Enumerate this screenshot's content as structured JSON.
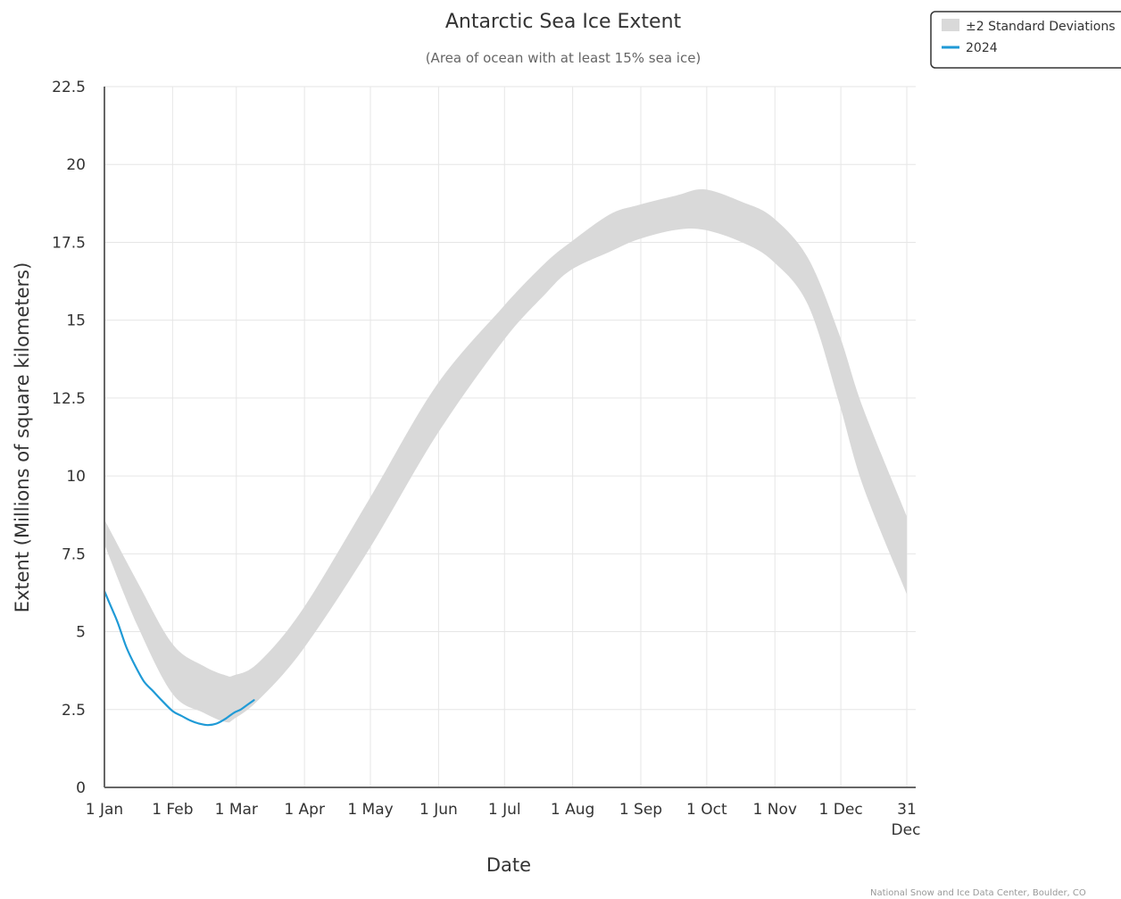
{
  "chart_data": {
    "type": "area",
    "title": "Antarctic Sea Ice Extent",
    "subtitle": "(Area of ocean with at least 15% sea ice)",
    "xlabel": "Date",
    "ylabel": "Extent (Millions of square kilometers)",
    "x_ticks": [
      "1 Jan",
      "1 Feb",
      "1 Mar",
      "1 Apr",
      "1 May",
      "1 Jun",
      "1 Jul",
      "1 Aug",
      "1 Sep",
      "1 Oct",
      "1 Nov",
      "1 Dec"
    ],
    "x_end_tick": [
      "31",
      "Dec"
    ],
    "y_ticks": [
      "0",
      "2.5",
      "5",
      "7.5",
      "10",
      "12.5",
      "15",
      "17.5",
      "20",
      "22.5"
    ],
    "ylim": [
      0,
      22.5
    ],
    "x_range_days": [
      0,
      365
    ],
    "grid": true,
    "legend_position": "top-right",
    "series": [
      {
        "name": "±2 Standard Deviations",
        "kind": "band",
        "color": "#d9d9d9",
        "x": [
          0,
          15,
          31,
          45,
          55,
          59,
          70,
          90,
          120,
          151,
          181,
          200,
          212,
          230,
          243,
          260,
          273,
          290,
          304,
          320,
          334,
          345,
          365
        ],
        "low": [
          7.8,
          5.2,
          3.0,
          2.4,
          2.1,
          2.2,
          2.8,
          4.4,
          7.6,
          11.3,
          14.3,
          15.8,
          16.6,
          17.2,
          17.6,
          17.9,
          17.9,
          17.5,
          16.9,
          15.5,
          12.4,
          9.7,
          6.2
        ],
        "high": [
          8.6,
          6.6,
          4.6,
          3.9,
          3.6,
          3.6,
          4.0,
          5.7,
          9.2,
          12.9,
          15.4,
          16.8,
          17.5,
          18.4,
          18.7,
          19.0,
          19.2,
          18.8,
          18.3,
          17.0,
          14.6,
          12.2,
          8.7
        ]
      },
      {
        "name": "2024",
        "kind": "line",
        "color": "#1f9ad6",
        "x": [
          0,
          3,
          6,
          10,
          14,
          18,
          22,
          26,
          31,
          35,
          39,
          43,
          47,
          51,
          55,
          59,
          62,
          65,
          68
        ],
        "values": [
          6.3,
          5.8,
          5.3,
          4.5,
          3.9,
          3.4,
          3.1,
          2.8,
          2.45,
          2.3,
          2.15,
          2.05,
          2.0,
          2.05,
          2.2,
          2.4,
          2.5,
          2.65,
          2.8
        ]
      }
    ]
  },
  "credit": "National Snow and Ice Data Center, Boulder, CO"
}
